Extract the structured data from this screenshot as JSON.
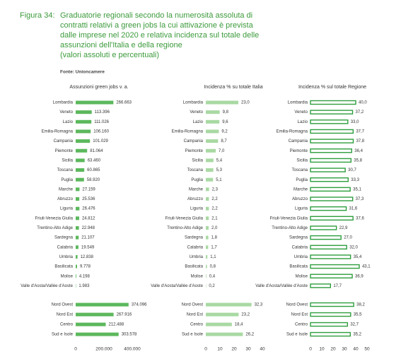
{
  "header": {
    "figure_label": "Figura 34:",
    "title_lines": [
      "Graduatorie regionali secondo la numerosità assoluta di",
      "contratti relativi a green jobs la cui attivazione è prevista",
      "dalle imprese nel 2020 e relativa incidenza sul totale delle",
      "assunzioni dell'Italia e della regione",
      "(valori assoluti e percentuali)"
    ],
    "source": "Fonte: Unioncamere"
  },
  "chart_data": [
    {
      "type": "bar",
      "orientation": "horizontal",
      "title": "Assunzioni green jobs v. a.",
      "color": "#5cb85c",
      "bar_style": "filled",
      "categories": [
        "Lombardia",
        "Veneto",
        "Lazio",
        "Emilia-Romagna",
        "Campania",
        "Piemonte",
        "Sicilia",
        "Toscana",
        "Puglia",
        "Marche",
        "Abruzzo",
        "Liguria",
        "Friuli-Venezia Giulia",
        "Trentino-Alto Adige",
        "Sardegna",
        "Calabria",
        "Umbria",
        "Basilicata",
        "Molise",
        "Valle d'Aosta/Vallée d'Aoste"
      ],
      "values": [
        266663,
        113396,
        111026,
        106160,
        101029,
        81064,
        63460,
        60865,
        58920,
        27159,
        25536,
        26476,
        24812,
        22948,
        21107,
        19549,
        12838,
        9778,
        4198,
        1983
      ],
      "value_labels": [
        "266.663",
        "113.396",
        "111.026",
        "106.160",
        "101.029",
        "81.064",
        "63.460",
        "60.865",
        "58.920",
        "27.159",
        "25.536",
        "26.476",
        "24.812",
        "22.948",
        "21.107",
        "19.549",
        "12.838",
        "9.778",
        "4.198",
        "1.983"
      ],
      "xlim": [
        0,
        400000
      ]
    },
    {
      "type": "bar",
      "orientation": "horizontal",
      "title": "Incidenza % su totale Italia",
      "color": "#a9d9a3",
      "bar_style": "filled",
      "categories": [
        "Lombardia",
        "Veneto",
        "Lazio",
        "Emilia-Romagna",
        "Campania",
        "Piemonte",
        "Sicilia",
        "Toscana",
        "Puglia",
        "Marche",
        "Abruzzo",
        "Liguria",
        "Friuli-Venezia Giulia",
        "Trentino-Alto Adige",
        "Sardegna",
        "Calabria",
        "Umbria",
        "Basilicata",
        "Molise",
        "Valle d'Aosta/Vallée d'Aoste"
      ],
      "values": [
        23.0,
        9.8,
        9.6,
        9.2,
        8.7,
        7.0,
        5.4,
        5.3,
        5.1,
        2.3,
        2.2,
        2.2,
        2.1,
        2.0,
        1.8,
        1.7,
        1.1,
        0.8,
        0.4,
        0.2
      ],
      "value_labels": [
        "23,0",
        "9,8",
        "9,6",
        "9,2",
        "8,7",
        "7,0",
        "5,4",
        "5,3",
        "5,1",
        "2,3",
        "2,2",
        "2,2",
        "2,1",
        "2,0",
        "1,8",
        "1,7",
        "1,1",
        "0,8",
        "0,4",
        "0,2"
      ],
      "xlim": [
        0,
        40
      ]
    },
    {
      "type": "bar",
      "orientation": "horizontal",
      "title": "Incidenza % sul totale Regione",
      "color": "#2e9e3e",
      "bar_style": "outline",
      "categories": [
        "Lombardia",
        "Veneto",
        "Lazio",
        "Emilia-Romagna",
        "Campania",
        "Piemonte",
        "Sicilia",
        "Toscana",
        "Puglia",
        "Marche",
        "Abruzzo",
        "Liguria",
        "Friuli-Venezia Giulia",
        "Trentino-Alto Adige",
        "Sardegna",
        "Calabria",
        "Umbria",
        "Basilicata",
        "Molise",
        "Valle d'Aosta/Vallée d'Aoste"
      ],
      "values": [
        40.0,
        37.2,
        33.0,
        37.7,
        37.8,
        36.4,
        35.8,
        30.7,
        33.3,
        35.1,
        37.3,
        31.6,
        37.6,
        22.9,
        27.0,
        32.0,
        35.4,
        43.1,
        36.9,
        17.7
      ],
      "value_labels": [
        "40,0",
        "37,2",
        "33,0",
        "37,7",
        "37,8",
        "36,4",
        "35,8",
        "30,7",
        "33,3",
        "35,1",
        "37,3",
        "31,6",
        "37,6",
        "22,9",
        "27,0",
        "32,0",
        "35,4",
        "43,1",
        "36,9",
        "17,7"
      ],
      "xlim": [
        0,
        50
      ]
    },
    {
      "type": "bar",
      "orientation": "horizontal",
      "color": "#5cb85c",
      "bar_style": "filled",
      "categories": [
        "Nord Ovest",
        "Nord Est",
        "Centro",
        "Sud e Isole"
      ],
      "values": [
        374096,
        267916,
        212488,
        303578
      ],
      "value_labels": [
        "374.096",
        "267.916",
        "212.488",
        "303.578"
      ],
      "xlim": [
        0,
        400000
      ],
      "xticks": [
        0,
        {
          "value": 200000,
          "label": "200.000"
        },
        {
          "value": 400000,
          "label": "400.000"
        }
      ]
    },
    {
      "type": "bar",
      "orientation": "horizontal",
      "color": "#a9d9a3",
      "bar_style": "filled",
      "categories": [
        "Nord Ovest",
        "Nord Est",
        "Centro",
        "Sud e Isole"
      ],
      "values": [
        32.3,
        23.2,
        18.4,
        26.2
      ],
      "value_labels": [
        "32,3",
        "23,2",
        "18,4",
        "26,2"
      ],
      "xlim": [
        0,
        40
      ],
      "xticks": [
        0,
        10,
        20,
        30,
        40
      ]
    },
    {
      "type": "bar",
      "orientation": "horizontal",
      "color": "#2e9e3e",
      "bar_style": "outline",
      "categories": [
        "Nord Ovest",
        "Nord Est",
        "Centro",
        "Sud e Isole"
      ],
      "values": [
        38.2,
        35.5,
        32.7,
        35.2
      ],
      "value_labels": [
        "38,2",
        "35,5",
        "32,7",
        "35,2"
      ],
      "xlim": [
        0,
        50
      ],
      "xticks": [
        0,
        10,
        20,
        30,
        40,
        50
      ]
    }
  ]
}
